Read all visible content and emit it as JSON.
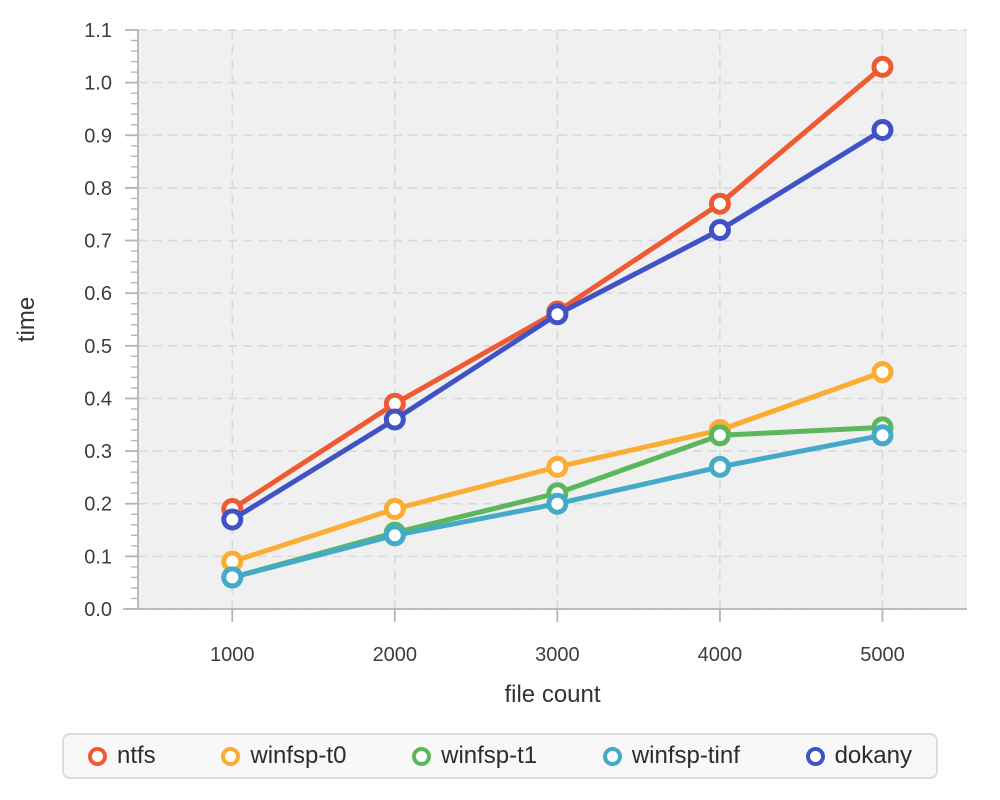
{
  "chart_data": {
    "type": "line",
    "xlabel": "file count",
    "ylabel": "time",
    "x": [
      1000,
      2000,
      3000,
      4000,
      5000
    ],
    "xticks": [
      1000,
      2000,
      3000,
      4000,
      5000
    ],
    "xticklabels": [
      "1000",
      "2000",
      "3000",
      "4000",
      "5000"
    ],
    "yticks": [
      0.0,
      0.1,
      0.2,
      0.3,
      0.4,
      0.5,
      0.6,
      0.7,
      0.8,
      0.9,
      1.0,
      1.1
    ],
    "yticklabels": [
      "0.0",
      "0.1",
      "0.2",
      "0.3",
      "0.4",
      "0.5",
      "0.6",
      "0.7",
      "0.8",
      "0.9",
      "1.0",
      "1.1"
    ],
    "xlim": [
      420,
      5520
    ],
    "ylim": [
      0.0,
      1.1
    ],
    "y_minor_tick_step": 0.02,
    "grid": "dashed",
    "legend_position": "bottom",
    "series": [
      {
        "name": "ntfs",
        "color": "#ee5b33",
        "values": [
          0.19,
          0.39,
          0.565,
          0.77,
          1.03
        ]
      },
      {
        "name": "winfsp-t0",
        "color": "#fbac33",
        "values": [
          0.09,
          0.19,
          0.27,
          0.34,
          0.45
        ]
      },
      {
        "name": "winfsp-t1",
        "color": "#5bb75b",
        "values": [
          0.06,
          0.145,
          0.22,
          0.33,
          0.345
        ]
      },
      {
        "name": "winfsp-tinf",
        "color": "#45a9c8",
        "values": [
          0.06,
          0.14,
          0.2,
          0.27,
          0.33
        ]
      },
      {
        "name": "dokany",
        "color": "#4053c6",
        "values": [
          0.17,
          0.36,
          0.56,
          0.72,
          0.91
        ]
      }
    ],
    "style": {
      "plot_bg": "#f0f0f0",
      "grid_color": "#d9d9d9",
      "axis_color": "#b5b5b5",
      "text_color": "#3d3d3d"
    }
  }
}
